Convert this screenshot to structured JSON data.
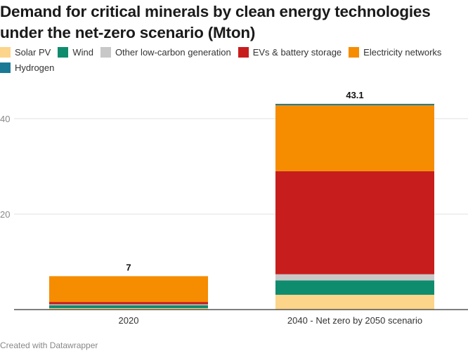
{
  "title_line1": "Demand for critical minerals by clean energy technologies",
  "title_line2": "under the net-zero scenario (Mton)",
  "footer": "Created with Datawrapper",
  "colors": {
    "Solar PV": "#fcd48a",
    "Wind": "#0f8c6e",
    "Other low-carbon generation": "#c8c8c8",
    "EVs & battery storage": "#c81d1d",
    "Electricity networks": "#f68c00",
    "Hydrogen": "#1a7a96"
  },
  "chart_data": {
    "type": "bar",
    "stacked": true,
    "title": "Demand for critical minerals by clean energy technologies under the net-zero scenario (Mton)",
    "categories": [
      "2020",
      "2040 - Net zero by 2050 scenario"
    ],
    "series": [
      {
        "name": "Solar PV",
        "values": [
          0.3,
          3.1
        ]
      },
      {
        "name": "Wind",
        "values": [
          0.6,
          3.0
        ]
      },
      {
        "name": "Other low-carbon generation",
        "values": [
          0.2,
          1.3
        ]
      },
      {
        "name": "EVs & battery storage",
        "values": [
          0.5,
          21.6
        ]
      },
      {
        "name": "Electricity networks",
        "values": [
          5.4,
          13.8
        ]
      },
      {
        "name": "Hydrogen",
        "values": [
          0.0,
          0.3
        ]
      }
    ],
    "totals": [
      "7",
      "43.1"
    ],
    "yticks": [
      20,
      40
    ],
    "ylim": [
      0,
      43.1
    ],
    "grid": true,
    "legend": "top"
  }
}
